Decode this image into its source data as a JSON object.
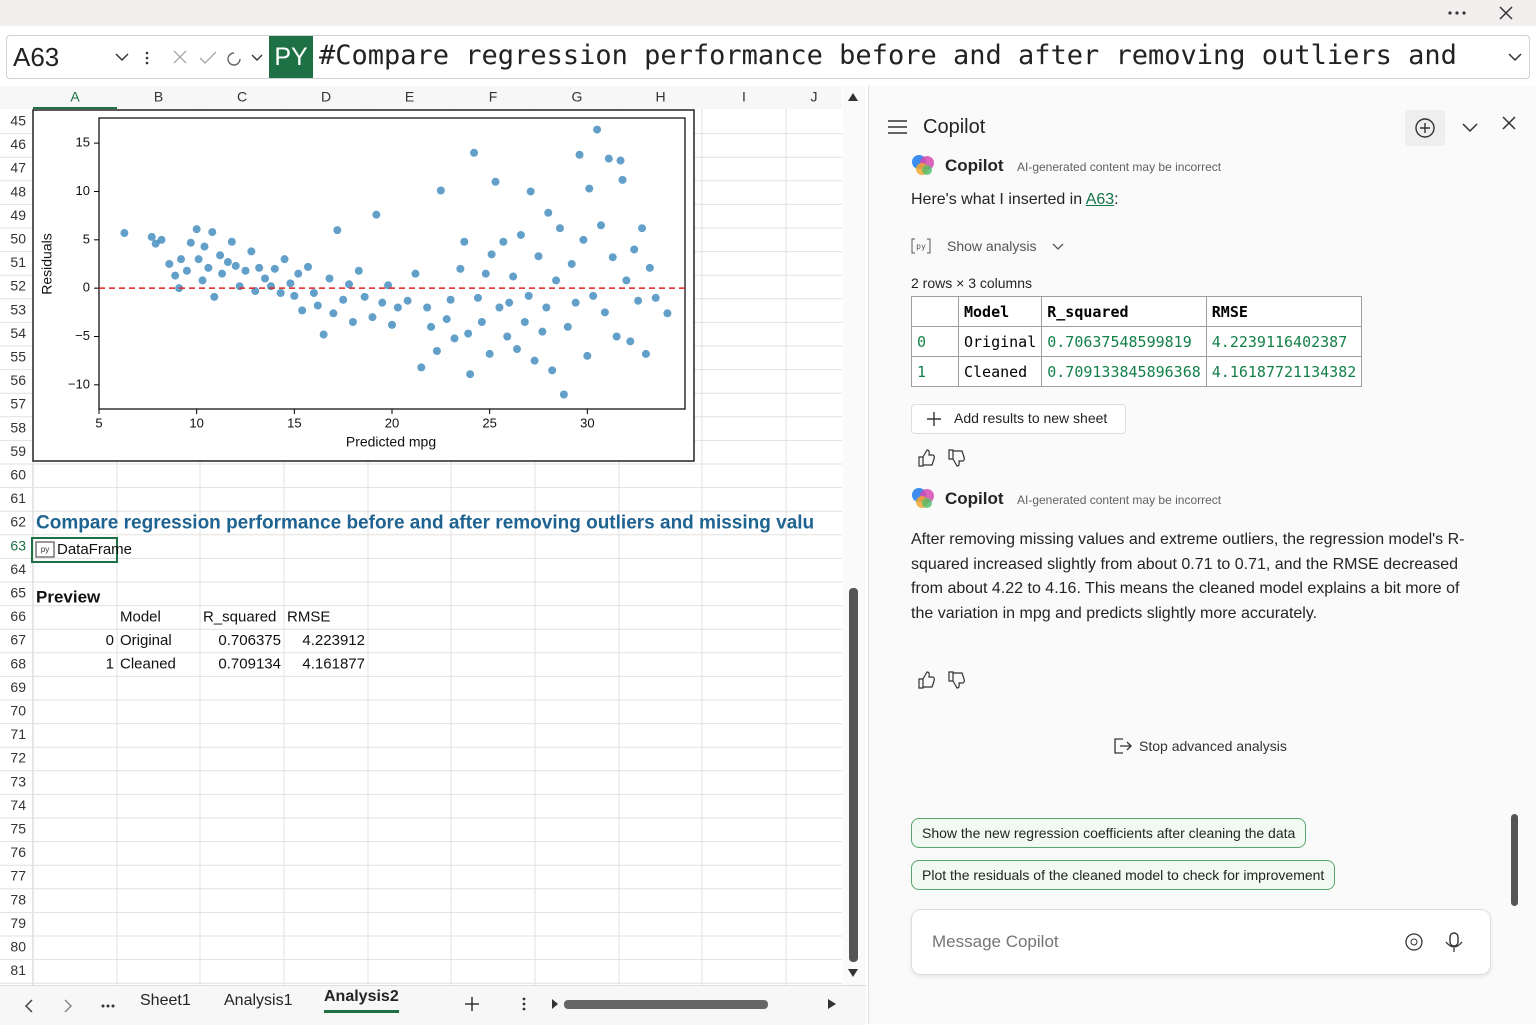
{
  "formula_bar": {
    "name_box": "A63",
    "py_badge": "PY",
    "formula": "#Compare regression performance before and after removing outliers and"
  },
  "grid": {
    "columns": [
      "A",
      "B",
      "C",
      "D",
      "E",
      "F",
      "G",
      "H",
      "I",
      "J"
    ],
    "rows": [
      45,
      46,
      47,
      48,
      49,
      50,
      51,
      52,
      53,
      54,
      55,
      56,
      57,
      58,
      59,
      60,
      61,
      62,
      63,
      64,
      65,
      66,
      67,
      68,
      69,
      70,
      71,
      72,
      73,
      74,
      75,
      76,
      77,
      78,
      79,
      80,
      81
    ]
  },
  "chart_data": {
    "type": "scatter",
    "xlabel": "Predicted mpg",
    "ylabel": "Residuals",
    "color": "#1f77b4",
    "xlim": [
      5,
      35
    ],
    "ylim": [
      -12.5,
      17.6
    ],
    "xticks": [
      5,
      10,
      15,
      20,
      25,
      30
    ],
    "yticks": [
      {
        "value": -10,
        "label": "−10"
      },
      {
        "value": -5,
        "label": "−5"
      },
      0,
      5,
      10,
      15
    ],
    "hline": 0,
    "hline_color": "#e02020",
    "x": [
      6.3,
      7.7,
      7.9,
      8.2,
      8.6,
      8.9,
      9.1,
      9.2,
      9.5,
      9.7,
      10,
      10.1,
      10.3,
      10.4,
      10.6,
      10.8,
      10.9,
      11.2,
      11.3,
      11.6,
      11.8,
      12,
      12.2,
      12.5,
      12.8,
      13,
      13.2,
      13.5,
      13.8,
      14,
      14.3,
      14.5,
      14.8,
      15,
      15.2,
      15.4,
      15.7,
      16,
      16.2,
      16.5,
      16.8,
      17,
      17.2,
      17.5,
      17.8,
      18,
      18.3,
      18.6,
      19,
      19.2,
      19.5,
      19.8,
      20,
      20.3,
      20.8,
      21.2,
      21.5,
      21.8,
      22,
      22.3,
      22.5,
      22.8,
      23,
      23.2,
      23.5,
      23.7,
      23.9,
      24,
      24.2,
      24.4,
      24.6,
      24.8,
      25,
      25.1,
      25.3,
      25.5,
      25.7,
      25.9,
      26,
      26.2,
      26.4,
      26.6,
      26.8,
      27,
      27.1,
      27.3,
      27.5,
      27.7,
      27.9,
      28,
      28.2,
      28.4,
      28.6,
      28.8,
      29,
      29.2,
      29.4,
      29.6,
      29.8,
      30,
      30.1,
      30.3,
      30.5,
      30.7,
      30.9,
      31.1,
      31.3,
      31.5,
      31.7,
      31.8,
      32,
      32.2,
      32.4,
      32.6,
      32.8,
      33,
      33.2,
      33.5,
      34.1
    ],
    "values": [
      5.7,
      5.3,
      4.6,
      5.0,
      2.5,
      1.3,
      0.0,
      3.0,
      1.8,
      4.7,
      6.1,
      3.0,
      0.8,
      4.3,
      2.1,
      5.8,
      -0.9,
      3.4,
      1.5,
      2.7,
      4.8,
      2.3,
      0.2,
      1.8,
      3.8,
      -0.3,
      2.1,
      1.0,
      0.2,
      2.0,
      -0.5,
      3.0,
      0.5,
      -0.8,
      1.5,
      -2.3,
      2.2,
      -0.5,
      -1.8,
      -4.8,
      1.0,
      -2.6,
      6.0,
      -1.2,
      0.4,
      -3.5,
      1.8,
      -0.9,
      -3.0,
      7.6,
      -1.5,
      0.3,
      -3.8,
      -2.0,
      -1.3,
      1.5,
      -8.2,
      -2.0,
      -4.0,
      -6.5,
      10.1,
      -3.2,
      -1.2,
      -5.2,
      2.0,
      4.8,
      -4.7,
      -8.9,
      14.0,
      -1.0,
      -3.5,
      1.5,
      -6.8,
      3.5,
      11.0,
      -2.0,
      4.8,
      -5.0,
      -1.5,
      1.2,
      -6.3,
      5.5,
      -3.5,
      -0.8,
      10.0,
      -7.5,
      3.3,
      -4.5,
      -2.0,
      7.8,
      -8.5,
      0.8,
      6.2,
      -11.0,
      -4.0,
      2.5,
      -1.5,
      13.8,
      5.0,
      -7.0,
      10.3,
      -0.8,
      16.4,
      6.5,
      -2.5,
      13.4,
      3.2,
      -5.0,
      13.2,
      11.2,
      0.8,
      -5.5,
      4.0,
      -1.3,
      6.2,
      -6.8,
      2.1,
      -1.0,
      -2.6
    ]
  },
  "cells": {
    "heading": "Compare regression performance before and after removing outliers and missing valu",
    "a63": "DataFrame",
    "preview_label": "Preview",
    "preview_table": {
      "header": [
        "Model",
        "R_squared",
        "RMSE"
      ],
      "rows": [
        [
          0,
          "Original",
          0.706375,
          4.223912
        ],
        [
          1,
          "Cleaned",
          0.709134,
          4.161877
        ]
      ]
    }
  },
  "sheet_tabs": [
    "Sheet1",
    "Analysis1",
    "Analysis2"
  ],
  "active_tab": 2,
  "copilot": {
    "title": "Copilot",
    "messages": [
      {
        "author": "Copilot",
        "disclaimer": "AI-generated content may be incorrect",
        "text_before": "Here's what I inserted in ",
        "link": "A63",
        "text_after": ":",
        "show_analysis": "Show analysis",
        "table_caption": "2 rows × 3 columns",
        "table": {
          "header": [
            "Model",
            "R_squared",
            "RMSE"
          ],
          "rows": [
            [
              0,
              "Original",
              0.70637548599819,
              4.2239116402387
            ],
            [
              1,
              "Cleaned",
              0.709133845896368,
              4.16187721134382
            ]
          ]
        },
        "action": "Add results to new sheet"
      },
      {
        "author": "Copilot",
        "disclaimer": "AI-generated content may be incorrect",
        "text": "After removing missing values and extreme outliers, the regression model's R-squared increased slightly from about 0.71 to 0.71, and the RMSE decreased from about 4.22 to 4.16. This means the cleaned model explains a bit more of the variation in mpg and predicts slightly more accurately."
      }
    ],
    "stop": "Stop advanced analysis",
    "suggestions": [
      "Show the new regression coefficients after cleaning the data",
      "Plot the residuals of the cleaned model to check for improvement"
    ],
    "input_placeholder": "Message Copilot"
  }
}
